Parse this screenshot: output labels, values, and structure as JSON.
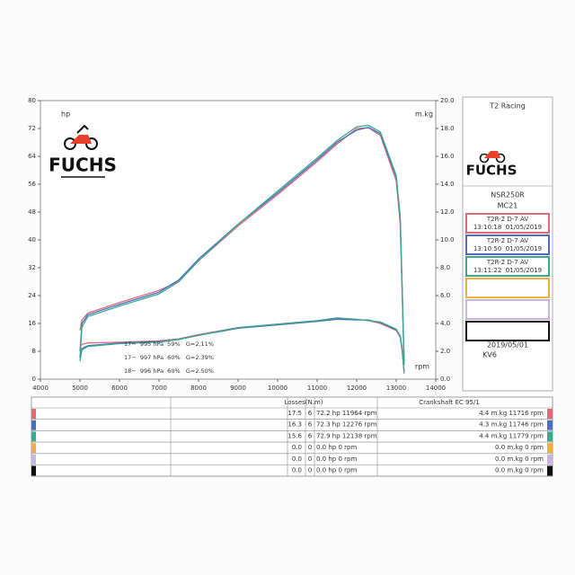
{
  "chart_data": {
    "type": "line",
    "x_label": "rpm",
    "y_label": "hp",
    "y2_label": "m.kg",
    "logo_text": "FUCHS",
    "x": [
      5000,
      5050,
      5200,
      6000,
      7000,
      7500,
      8000,
      9000,
      10000,
      11000,
      11500,
      12000,
      12300,
      12600,
      13000,
      13100,
      13150,
      13200
    ],
    "series": [
      {
        "color": "#e06a78",
        "values": [
          14,
          17,
          19,
          22,
          25.5,
          28,
          34,
          44,
          53,
          62.5,
          67.5,
          72,
          72.2,
          70,
          57,
          45,
          25,
          6
        ]
      },
      {
        "color": "#4a6fc0",
        "values": [
          8,
          16,
          18.5,
          21.5,
          25,
          28.5,
          34.5,
          44.5,
          53.5,
          63,
          68,
          71.5,
          72.3,
          70.5,
          58,
          46,
          26,
          5
        ]
      },
      {
        "color": "#3aa88c",
        "values": [
          6,
          15,
          18,
          21,
          24.5,
          28,
          34,
          44.5,
          54,
          63.5,
          68.5,
          72.5,
          72.9,
          71,
          58.5,
          47,
          27,
          4
        ]
      },
      {
        "color": "#e06a78",
        "axis": "y2",
        "values": [
          2.3,
          2.5,
          2.6,
          2.65,
          2.75,
          2.9,
          3.2,
          3.7,
          3.95,
          4.2,
          4.35,
          4.3,
          4.2,
          4.0,
          3.5,
          3.0,
          2.0,
          0.6
        ]
      },
      {
        "color": "#4a6fc0",
        "axis": "y2",
        "values": [
          1.6,
          2.2,
          2.4,
          2.6,
          2.7,
          2.85,
          3.15,
          3.65,
          3.9,
          4.15,
          4.3,
          4.25,
          4.25,
          4.05,
          3.55,
          3.1,
          2.1,
          0.5
        ]
      },
      {
        "color": "#3aa88c",
        "axis": "y2",
        "values": [
          1.3,
          2.1,
          2.35,
          2.55,
          2.65,
          2.85,
          3.15,
          3.7,
          3.95,
          4.2,
          4.4,
          4.3,
          4.2,
          4.1,
          3.6,
          3.1,
          2.2,
          0.4
        ]
      }
    ],
    "xlim": [
      4000,
      14000
    ],
    "xticks": [
      4000,
      5000,
      6000,
      7000,
      8000,
      9000,
      10000,
      11000,
      12000,
      13000,
      14000
    ],
    "ylim": [
      0,
      80
    ],
    "yticks": [
      0,
      8,
      16,
      24,
      32,
      40,
      48,
      56,
      64,
      72,
      80
    ],
    "y2lim": [
      0,
      20
    ],
    "y2ticks": [
      {
        "value": 0,
        "label": "0.0"
      },
      {
        "value": 2,
        "label": "2.0"
      },
      {
        "value": 4,
        "label": "4.0"
      },
      {
        "value": 6,
        "label": "6.0"
      },
      {
        "value": 8,
        "label": "8.0"
      },
      {
        "value": 10,
        "label": "10.0"
      },
      {
        "value": 12,
        "label": "12.0"
      },
      {
        "value": 14,
        "label": "14.0"
      },
      {
        "value": 16,
        "label": "16.0"
      },
      {
        "value": 18,
        "label": "18.0"
      },
      {
        "value": 20,
        "label": "20.0"
      }
    ],
    "annotations": [
      {
        "text": "17−  995 hPa  59%   G=2.11%",
        "color": "#e06a78"
      },
      {
        "text": "17−  997 hPa  60%   G=2.39%",
        "color": "#4a6fc0"
      },
      {
        "text": "18−  996 hPa  60%   G=2.50%",
        "color": "#3aa88c"
      }
    ]
  },
  "sidebar": {
    "title": "T2 Racing",
    "model": "NSR250R",
    "code": "MC21",
    "runs": [
      {
        "color": "#e06a78",
        "name": "T2R-2 D-7 AV",
        "time": "13:10:18  01/05/2019"
      },
      {
        "color": "#4a6fc0",
        "name": "T2R-2 D-7 AV",
        "time": "13:10:50  01/05/2019"
      },
      {
        "color": "#3aa88c",
        "name": "T2R-2 D-7 AV",
        "time": "13:11:22  01/05/2019"
      }
    ],
    "empty_slots": [
      "#f0b040",
      "#c8b4dc",
      "#111111"
    ],
    "date": "2019/05/01",
    "operator": "KV6"
  },
  "table": {
    "losses": "Losses(N.m)",
    "crankshaft": "Crankshaft EC 95/1",
    "rows": [
      {
        "color": "#e06a78",
        "cells": [
          "17.5",
          "6",
          "72.2 hp 11964 rpm",
          "4.4 m.kg 11716 rpm"
        ]
      },
      {
        "color": "#4a6fc0",
        "cells": [
          "16.3",
          "6",
          "72.3 hp 12276 rpm",
          "4.3 m.kg 11746 rpm"
        ]
      },
      {
        "color": "#3aa88c",
        "cells": [
          "15.6",
          "6",
          "72.9 hp 12138 rpm",
          "4.4 m.kg 11779 rpm"
        ]
      },
      {
        "color": "#f0b040",
        "cells": [
          "0.0",
          "0",
          "0.0 hp 0 rpm",
          "0.0 m.kg 0 rpm"
        ]
      },
      {
        "color": "#c8b4dc",
        "cells": [
          "0.0",
          "0",
          "0.0 hp 0 rpm",
          "0.0 m.kg 0 rpm"
        ]
      },
      {
        "color": "#111111",
        "cells": [
          "0.0",
          "0",
          "0.0 hp 0 rpm",
          "0.0 m.kg 0 rpm"
        ]
      }
    ]
  }
}
